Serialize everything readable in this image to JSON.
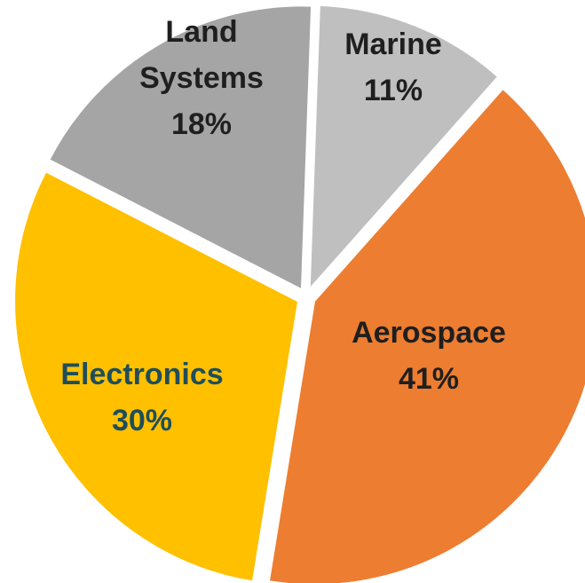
{
  "chart_data": {
    "type": "pie",
    "start_angle_deg": 2,
    "direction": "clockwise",
    "exploded": true,
    "slices": [
      {
        "label": "Marine",
        "value": 11,
        "value_label": "11%",
        "color": "#bfbfbf",
        "label_color": "#1f1f1f",
        "label_lines": [
          "Marine",
          "11%"
        ]
      },
      {
        "label": "Aerospace",
        "value": 41,
        "value_label": "41%",
        "color": "#ed7d31",
        "label_color": "#1f1f1f",
        "label_lines": [
          "Aerospace",
          "41%"
        ]
      },
      {
        "label": "Electronics",
        "value": 30,
        "value_label": "30%",
        "color": "#ffc000",
        "label_color": "#1f4e5a",
        "label_lines": [
          "Electronics",
          "30%"
        ]
      },
      {
        "label": "Land Systems",
        "value": 18,
        "value_label": "18%",
        "color": "#a5a5a5",
        "label_color": "#1f1f1f",
        "label_lines": [
          "Land",
          "Systems",
          "18%"
        ]
      }
    ]
  }
}
